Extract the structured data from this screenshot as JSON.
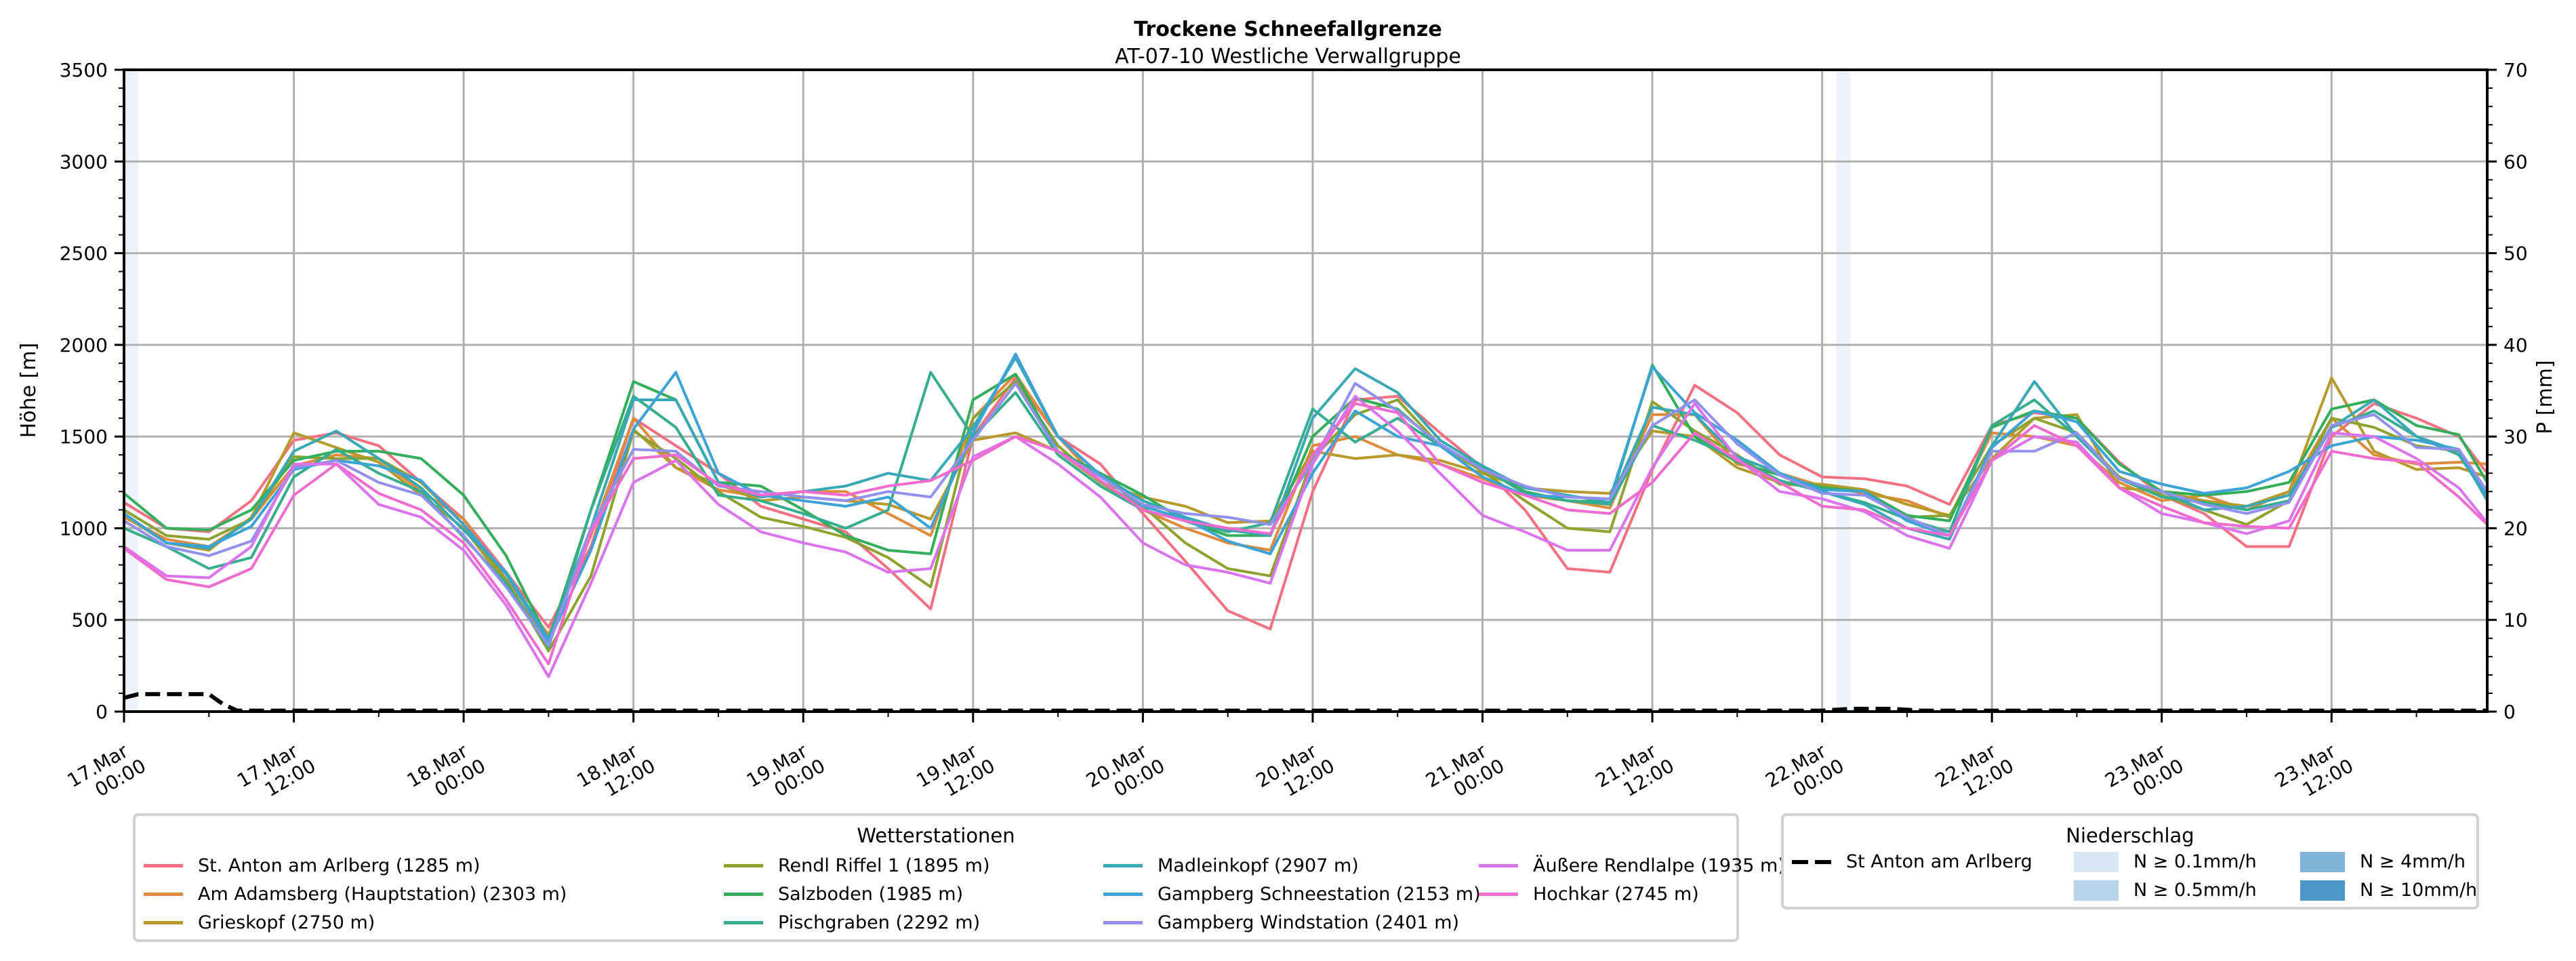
{
  "title": "Trockene Schneefallgrenze",
  "subtitle": "AT-07-10 Westliche Verwallgruppe",
  "chart_data": {
    "type": "line",
    "title": "Trockene Schneefallgrenze",
    "subtitle": "AT-07-10 Westliche Verwallgruppe",
    "xlabel": "",
    "ylabel": "Höhe [m]",
    "y2label": "P [mm]",
    "ylim": [
      0,
      3500
    ],
    "y2lim": [
      0,
      70
    ],
    "yticks": [
      "0",
      "500",
      "1000",
      "1500",
      "2000",
      "2500",
      "3000",
      "3500"
    ],
    "y2ticks": [
      "0",
      "10",
      "20",
      "30",
      "40",
      "50",
      "60",
      "70"
    ],
    "x_unit": "hours since 17.Mar 00:00",
    "xlim": [
      0,
      167
    ],
    "xticks": [
      {
        "hour": 0,
        "line1": "17.Mar",
        "line2": "00:00"
      },
      {
        "hour": 12,
        "line1": "17.Mar",
        "line2": "12:00"
      },
      {
        "hour": 24,
        "line1": "18.Mar",
        "line2": "00:00"
      },
      {
        "hour": 36,
        "line1": "18.Mar",
        "line2": "12:00"
      },
      {
        "hour": 48,
        "line1": "19.Mar",
        "line2": "00:00"
      },
      {
        "hour": 60,
        "line1": "19.Mar",
        "line2": "12:00"
      },
      {
        "hour": 72,
        "line1": "20.Mar",
        "line2": "00:00"
      },
      {
        "hour": 84,
        "line1": "20.Mar",
        "line2": "12:00"
      },
      {
        "hour": 96,
        "line1": "21.Mar",
        "line2": "00:00"
      },
      {
        "hour": 108,
        "line1": "21.Mar",
        "line2": "12:00"
      },
      {
        "hour": 120,
        "line1": "22.Mar",
        "line2": "00:00"
      },
      {
        "hour": 132,
        "line1": "22.Mar",
        "line2": "12:00"
      },
      {
        "hour": 144,
        "line1": "23.Mar",
        "line2": "00:00"
      },
      {
        "hour": 156,
        "line1": "23.Mar",
        "line2": "12:00"
      }
    ],
    "grid": true,
    "x": [
      0,
      3,
      6,
      9,
      12,
      15,
      18,
      21,
      24,
      27,
      30,
      33,
      36,
      39,
      42,
      45,
      48,
      51,
      54,
      57,
      60,
      63,
      66,
      69,
      72,
      75,
      78,
      81,
      84,
      87,
      90,
      93,
      96,
      99,
      102,
      105,
      108,
      111,
      114,
      117,
      120,
      123,
      126,
      129,
      132,
      135,
      138,
      141,
      144,
      147,
      150,
      153,
      156,
      159,
      162,
      165,
      167
    ],
    "series": [
      {
        "name": "St. Anton am Arlberg (1285 m)",
        "color": "#f27082",
        "values": [
          1140,
          1000,
          980,
          1150,
          1480,
          1520,
          1450,
          1250,
          1050,
          760,
          460,
          900,
          1600,
          1450,
          1300,
          1120,
          1050,
          980,
          780,
          560,
          1500,
          1820,
          1500,
          1350,
          1080,
          820,
          550,
          450,
          1200,
          1700,
          1720,
          1520,
          1330,
          1100,
          780,
          760,
          1320,
          1780,
          1630,
          1400,
          1280,
          1270,
          1230,
          1130,
          1560,
          1630,
          1600,
          1360,
          1180,
          1080,
          900,
          900,
          1500,
          1680,
          1600,
          1500,
          1300
        ]
      },
      {
        "name": "Am Adamsberg (Hauptstation) (2303 m)",
        "color": "#e08a3c",
        "values": [
          1060,
          940,
          900,
          1050,
          1340,
          1400,
          1380,
          1200,
          1050,
          720,
          420,
          960,
          1600,
          1330,
          1210,
          1170,
          1200,
          1200,
          1080,
          960,
          1600,
          1840,
          1500,
          1250,
          1100,
          1000,
          920,
          880,
          1450,
          1500,
          1400,
          1350,
          1270,
          1180,
          1150,
          1110,
          1620,
          1620,
          1350,
          1300,
          1230,
          1190,
          1150,
          1060,
          1520,
          1500,
          1450,
          1250,
          1150,
          1180,
          1100,
          1200,
          1600,
          1400,
          1350,
          1360,
          1350
        ]
      },
      {
        "name": "Grieskopf (2750 m)",
        "color": "#b89a2c",
        "values": [
          1070,
          920,
          880,
          1060,
          1520,
          1440,
          1360,
          1180,
          1000,
          700,
          380,
          880,
          1540,
          1330,
          1240,
          1150,
          1170,
          1150,
          1130,
          1050,
          1480,
          1520,
          1420,
          1250,
          1170,
          1120,
          1030,
          1040,
          1420,
          1380,
          1400,
          1370,
          1300,
          1220,
          1200,
          1190,
          1530,
          1500,
          1330,
          1250,
          1240,
          1210,
          1130,
          1070,
          1380,
          1600,
          1620,
          1220,
          1200,
          1150,
          1120,
          1200,
          1820,
          1420,
          1320,
          1330,
          1280
        ]
      },
      {
        "name": "Rendl Riffel 1 (1895 m)",
        "color": "#8ea22e",
        "values": [
          1100,
          960,
          940,
          1050,
          1390,
          1380,
          1380,
          1250,
          1020,
          720,
          330,
          740,
          1530,
          1380,
          1200,
          1060,
          1010,
          950,
          840,
          680,
          1600,
          1800,
          1450,
          1250,
          1120,
          920,
          780,
          740,
          1380,
          1620,
          1700,
          1450,
          1310,
          1150,
          1000,
          980,
          1690,
          1530,
          1400,
          1240,
          1230,
          1200,
          1060,
          1070,
          1450,
          1600,
          1520,
          1280,
          1180,
          1100,
          1020,
          1150,
          1600,
          1550,
          1450,
          1420,
          1200
        ]
      },
      {
        "name": "Salzboden (1985 m)",
        "color": "#33ae5a",
        "values": [
          1190,
          1000,
          990,
          1100,
          1370,
          1420,
          1420,
          1380,
          1180,
          850,
          390,
          1100,
          1800,
          1700,
          1250,
          1230,
          1100,
          960,
          880,
          860,
          1700,
          1840,
          1420,
          1300,
          1180,
          1040,
          960,
          960,
          1500,
          1710,
          1650,
          1450,
          1330,
          1200,
          1150,
          1140,
          1890,
          1500,
          1360,
          1290,
          1220,
          1200,
          1070,
          1040,
          1550,
          1640,
          1600,
          1350,
          1200,
          1180,
          1200,
          1250,
          1650,
          1700,
          1560,
          1510,
          1250
        ]
      },
      {
        "name": "Pischgraben (2292 m)",
        "color": "#36ad8f",
        "values": [
          1000,
          900,
          780,
          840,
          1280,
          1430,
          1300,
          1200,
          950,
          700,
          350,
          1100,
          1720,
          1550,
          1180,
          1150,
          1080,
          1000,
          1100,
          1850,
          1500,
          1740,
          1400,
          1230,
          1100,
          1040,
          980,
          1030,
          1650,
          1470,
          1600,
          1450,
          1330,
          1190,
          1150,
          1130,
          1560,
          1480,
          1380,
          1260,
          1200,
          1140,
          1050,
          980,
          1560,
          1700,
          1500,
          1270,
          1170,
          1140,
          1100,
          1150,
          1550,
          1640,
          1500,
          1400,
          1170
        ]
      },
      {
        "name": "Madleinkopf (2907 m)",
        "color": "#38a9b4",
        "values": [
          1080,
          920,
          890,
          1050,
          1420,
          1530,
          1380,
          1220,
          990,
          760,
          400,
          1000,
          1700,
          1700,
          1250,
          1170,
          1200,
          1230,
          1300,
          1260,
          1550,
          1930,
          1500,
          1290,
          1150,
          1060,
          990,
          960,
          1600,
          1870,
          1740,
          1480,
          1340,
          1220,
          1180,
          1140,
          1660,
          1620,
          1390,
          1300,
          1200,
          1130,
          1000,
          940,
          1450,
          1800,
          1500,
          1270,
          1200,
          1100,
          1120,
          1180,
          1550,
          1700,
          1500,
          1420,
          1150
        ]
      },
      {
        "name": "Gampberg Schneestation (2153 m)",
        "color": "#3ca3d6",
        "values": [
          1080,
          920,
          900,
          1010,
          1320,
          1370,
          1340,
          1260,
          1020,
          750,
          380,
          880,
          1540,
          1850,
          1300,
          1180,
          1150,
          1120,
          1170,
          1000,
          1520,
          1950,
          1500,
          1290,
          1120,
          1050,
          930,
          860,
          1300,
          1640,
          1500,
          1450,
          1280,
          1180,
          1170,
          1160,
          1880,
          1630,
          1480,
          1300,
          1210,
          1200,
          1040,
          960,
          1440,
          1640,
          1580,
          1310,
          1240,
          1190,
          1220,
          1310,
          1450,
          1500,
          1480,
          1430,
          1180
        ]
      },
      {
        "name": "Gampberg Windstation (2401 m)",
        "color": "#9191ed",
        "values": [
          1040,
          900,
          850,
          930,
          1330,
          1370,
          1250,
          1180,
          960,
          680,
          360,
          1000,
          1430,
          1420,
          1230,
          1200,
          1170,
          1150,
          1200,
          1170,
          1480,
          1790,
          1420,
          1280,
          1130,
          1080,
          1060,
          1020,
          1360,
          1790,
          1640,
          1460,
          1320,
          1230,
          1170,
          1160,
          1560,
          1700,
          1460,
          1290,
          1190,
          1180,
          1060,
          960,
          1420,
          1420,
          1520,
          1270,
          1200,
          1130,
          1080,
          1140,
          1560,
          1620,
          1440,
          1430,
          1200
        ]
      },
      {
        "name": "Äußere Rendlalpe (1935 m)",
        "color": "#db72ee",
        "values": [
          900,
          740,
          730,
          900,
          1350,
          1350,
          1130,
          1060,
          880,
          580,
          190,
          700,
          1250,
          1370,
          1130,
          980,
          920,
          870,
          760,
          780,
          1390,
          1500,
          1350,
          1170,
          920,
          800,
          760,
          700,
          1350,
          1720,
          1530,
          1300,
          1070,
          980,
          880,
          880,
          1330,
          1680,
          1380,
          1200,
          1160,
          1090,
          960,
          890,
          1370,
          1500,
          1470,
          1220,
          1080,
          1030,
          970,
          1040,
          1520,
          1500,
          1380,
          1220,
          1030
        ]
      },
      {
        "name": "Hochkar (2745 m)",
        "color": "#f16ad0",
        "values": [
          890,
          720,
          680,
          780,
          1180,
          1350,
          1190,
          1100,
          920,
          610,
          260,
          980,
          1380,
          1400,
          1240,
          1180,
          1200,
          1180,
          1230,
          1260,
          1370,
          1500,
          1420,
          1260,
          1100,
          1040,
          1000,
          970,
          1400,
          1680,
          1630,
          1350,
          1250,
          1180,
          1100,
          1080,
          1250,
          1520,
          1370,
          1250,
          1120,
          1100,
          1000,
          960,
          1370,
          1560,
          1450,
          1220,
          1120,
          1030,
          1010,
          1000,
          1420,
          1380,
          1360,
          1170,
          1020
        ]
      }
    ],
    "precipitation": {
      "name": "St Anton am Arlberg",
      "unit": "mm",
      "x": [
        0,
        1,
        2,
        3,
        4,
        5,
        6,
        7,
        8,
        120,
        121,
        122,
        123,
        124,
        125,
        126,
        127,
        128,
        167
      ],
      "values": [
        1.5,
        1.9,
        1.9,
        1.9,
        1.9,
        1.9,
        1.9,
        0.8,
        0.1,
        0.1,
        0.2,
        0.3,
        0.3,
        0.3,
        0.3,
        0.2,
        0.1,
        0.1,
        0.1
      ]
    },
    "precip_bands": [
      {
        "hour": 0,
        "class": "N ≥ 0.1mm/h"
      },
      {
        "hour": 121,
        "class": "N ≥ 0.1mm/h"
      }
    ]
  },
  "legend_stations": {
    "title": "Wetterstationen",
    "items": [
      "St. Anton am Arlberg (1285 m)",
      "Am Adamsberg (Hauptstation) (2303 m)",
      "Grieskopf (2750 m)",
      "Rendl Riffel 1 (1895 m)",
      "Salzboden (1985 m)",
      "Pischgraben (2292 m)",
      "Madleinkopf (2907 m)",
      "Gampberg Schneestation (2153 m)",
      "Gampberg Windstation (2401 m)",
      "Äußere Rendlalpe (1935 m)",
      "Hochkar (2745 m)"
    ]
  },
  "legend_precip": {
    "title": "Niederschlag",
    "line_label": "St Anton am Arlberg",
    "classes": [
      {
        "label": "N ≥ 0.1mm/h",
        "color": "#d6e6f4"
      },
      {
        "label": "N ≥ 0.5mm/h",
        "color": "#b8d4ea"
      },
      {
        "label": "N ≥ 4mm/h",
        "color": "#7fb5d8"
      },
      {
        "label": "N ≥ 10mm/h",
        "color": "#4c97c8"
      }
    ]
  },
  "colors": {
    "grid": "#b0b0b0",
    "band": "#eef3fb"
  }
}
